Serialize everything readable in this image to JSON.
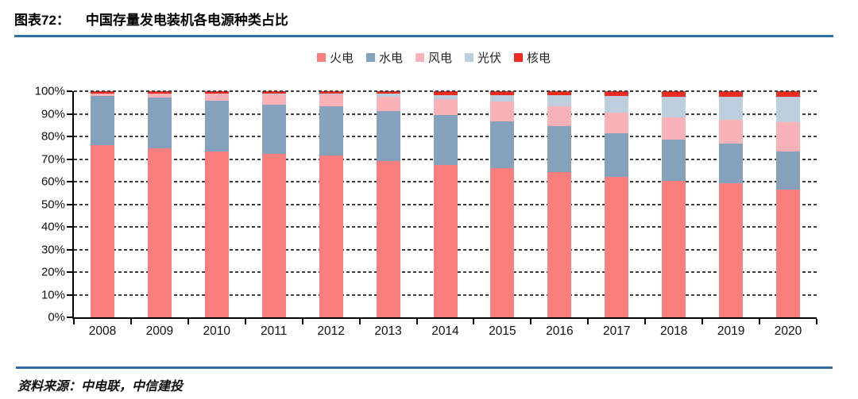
{
  "figure": {
    "label": "图表72：",
    "title": "中国存量发电装机各电源种类占比",
    "source_label": "资料来源：",
    "source_text": "中电联，中信建投",
    "accent_color": "#2e6ca3"
  },
  "chart_data": {
    "type": "bar",
    "stacked": true,
    "title": "中国存量发电装机各电源种类占比",
    "categories": [
      "2008",
      "2009",
      "2010",
      "2011",
      "2012",
      "2013",
      "2014",
      "2015",
      "2016",
      "2017",
      "2018",
      "2019",
      "2020"
    ],
    "series": [
      {
        "name": "火电",
        "color": "#f97f7f",
        "values": [
          76.0,
          74.6,
          73.4,
          72.3,
          71.5,
          69.1,
          67.3,
          65.9,
          64.3,
          62.2,
          60.2,
          59.2,
          56.6
        ]
      },
      {
        "name": "水电",
        "color": "#84a2bc",
        "values": [
          21.8,
          22.5,
          22.3,
          21.9,
          21.8,
          22.3,
          22.2,
          20.9,
          20.1,
          19.2,
          18.5,
          17.7,
          16.8
        ]
      },
      {
        "name": "风电",
        "color": "#f9b3b8",
        "values": [
          1.1,
          1.9,
          3.1,
          4.3,
          5.3,
          6.1,
          7.0,
          8.6,
          9.0,
          9.2,
          9.7,
          10.4,
          12.8
        ]
      },
      {
        "name": "光伏",
        "color": "#bdcfde",
        "values": [
          0.0,
          0.0,
          0.1,
          0.3,
          0.3,
          1.3,
          1.8,
          2.8,
          4.7,
          7.3,
          9.2,
          10.2,
          11.5
        ]
      },
      {
        "name": "核电",
        "color": "#ee2b22",
        "values": [
          1.1,
          1.0,
          1.1,
          1.2,
          1.1,
          1.2,
          1.7,
          1.8,
          1.9,
          2.1,
          2.4,
          2.5,
          2.3
        ]
      }
    ],
    "xlabel": "",
    "ylabel": "",
    "ylim": [
      0,
      100
    ],
    "y_tick_step": 10,
    "y_tick_labels": [
      "0%",
      "10%",
      "20%",
      "30%",
      "40%",
      "50%",
      "60%",
      "70%",
      "80%",
      "90%",
      "100%"
    ],
    "grid": "horizontal-dashed",
    "legend_position": "top-center",
    "legend": [
      "火电",
      "水电",
      "风电",
      "光伏",
      "核电"
    ]
  }
}
